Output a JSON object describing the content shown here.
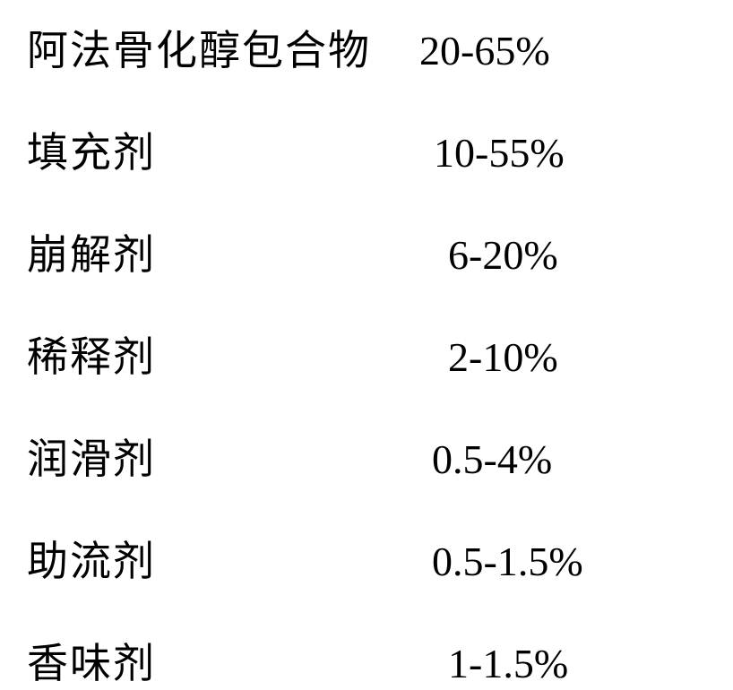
{
  "rows": [
    {
      "label": "阿法骨化醇包合物",
      "value": "20-65%",
      "label_width": 368,
      "gap": 54
    },
    {
      "label": "填充剂",
      "value": "10-55%",
      "label_width": 138,
      "gap": 310
    },
    {
      "label": "崩解剂",
      "value": "6-20%",
      "label_width": 138,
      "gap": 326
    },
    {
      "label": "稀释剂",
      "value": "2-10%",
      "label_width": 138,
      "gap": 326
    },
    {
      "label": "润滑剂",
      "value": "0.5-4%",
      "label_width": 138,
      "gap": 308
    },
    {
      "label": "助流剂",
      "value": "0.5-1.5%",
      "label_width": 138,
      "gap": 308
    },
    {
      "label": "香味剂",
      "value": "1-1.5%",
      "label_width": 138,
      "gap": 326
    }
  ],
  "styles": {
    "font_size": 46,
    "text_color": "#000000",
    "background_color": "#ffffff",
    "row_spacing": 48
  }
}
